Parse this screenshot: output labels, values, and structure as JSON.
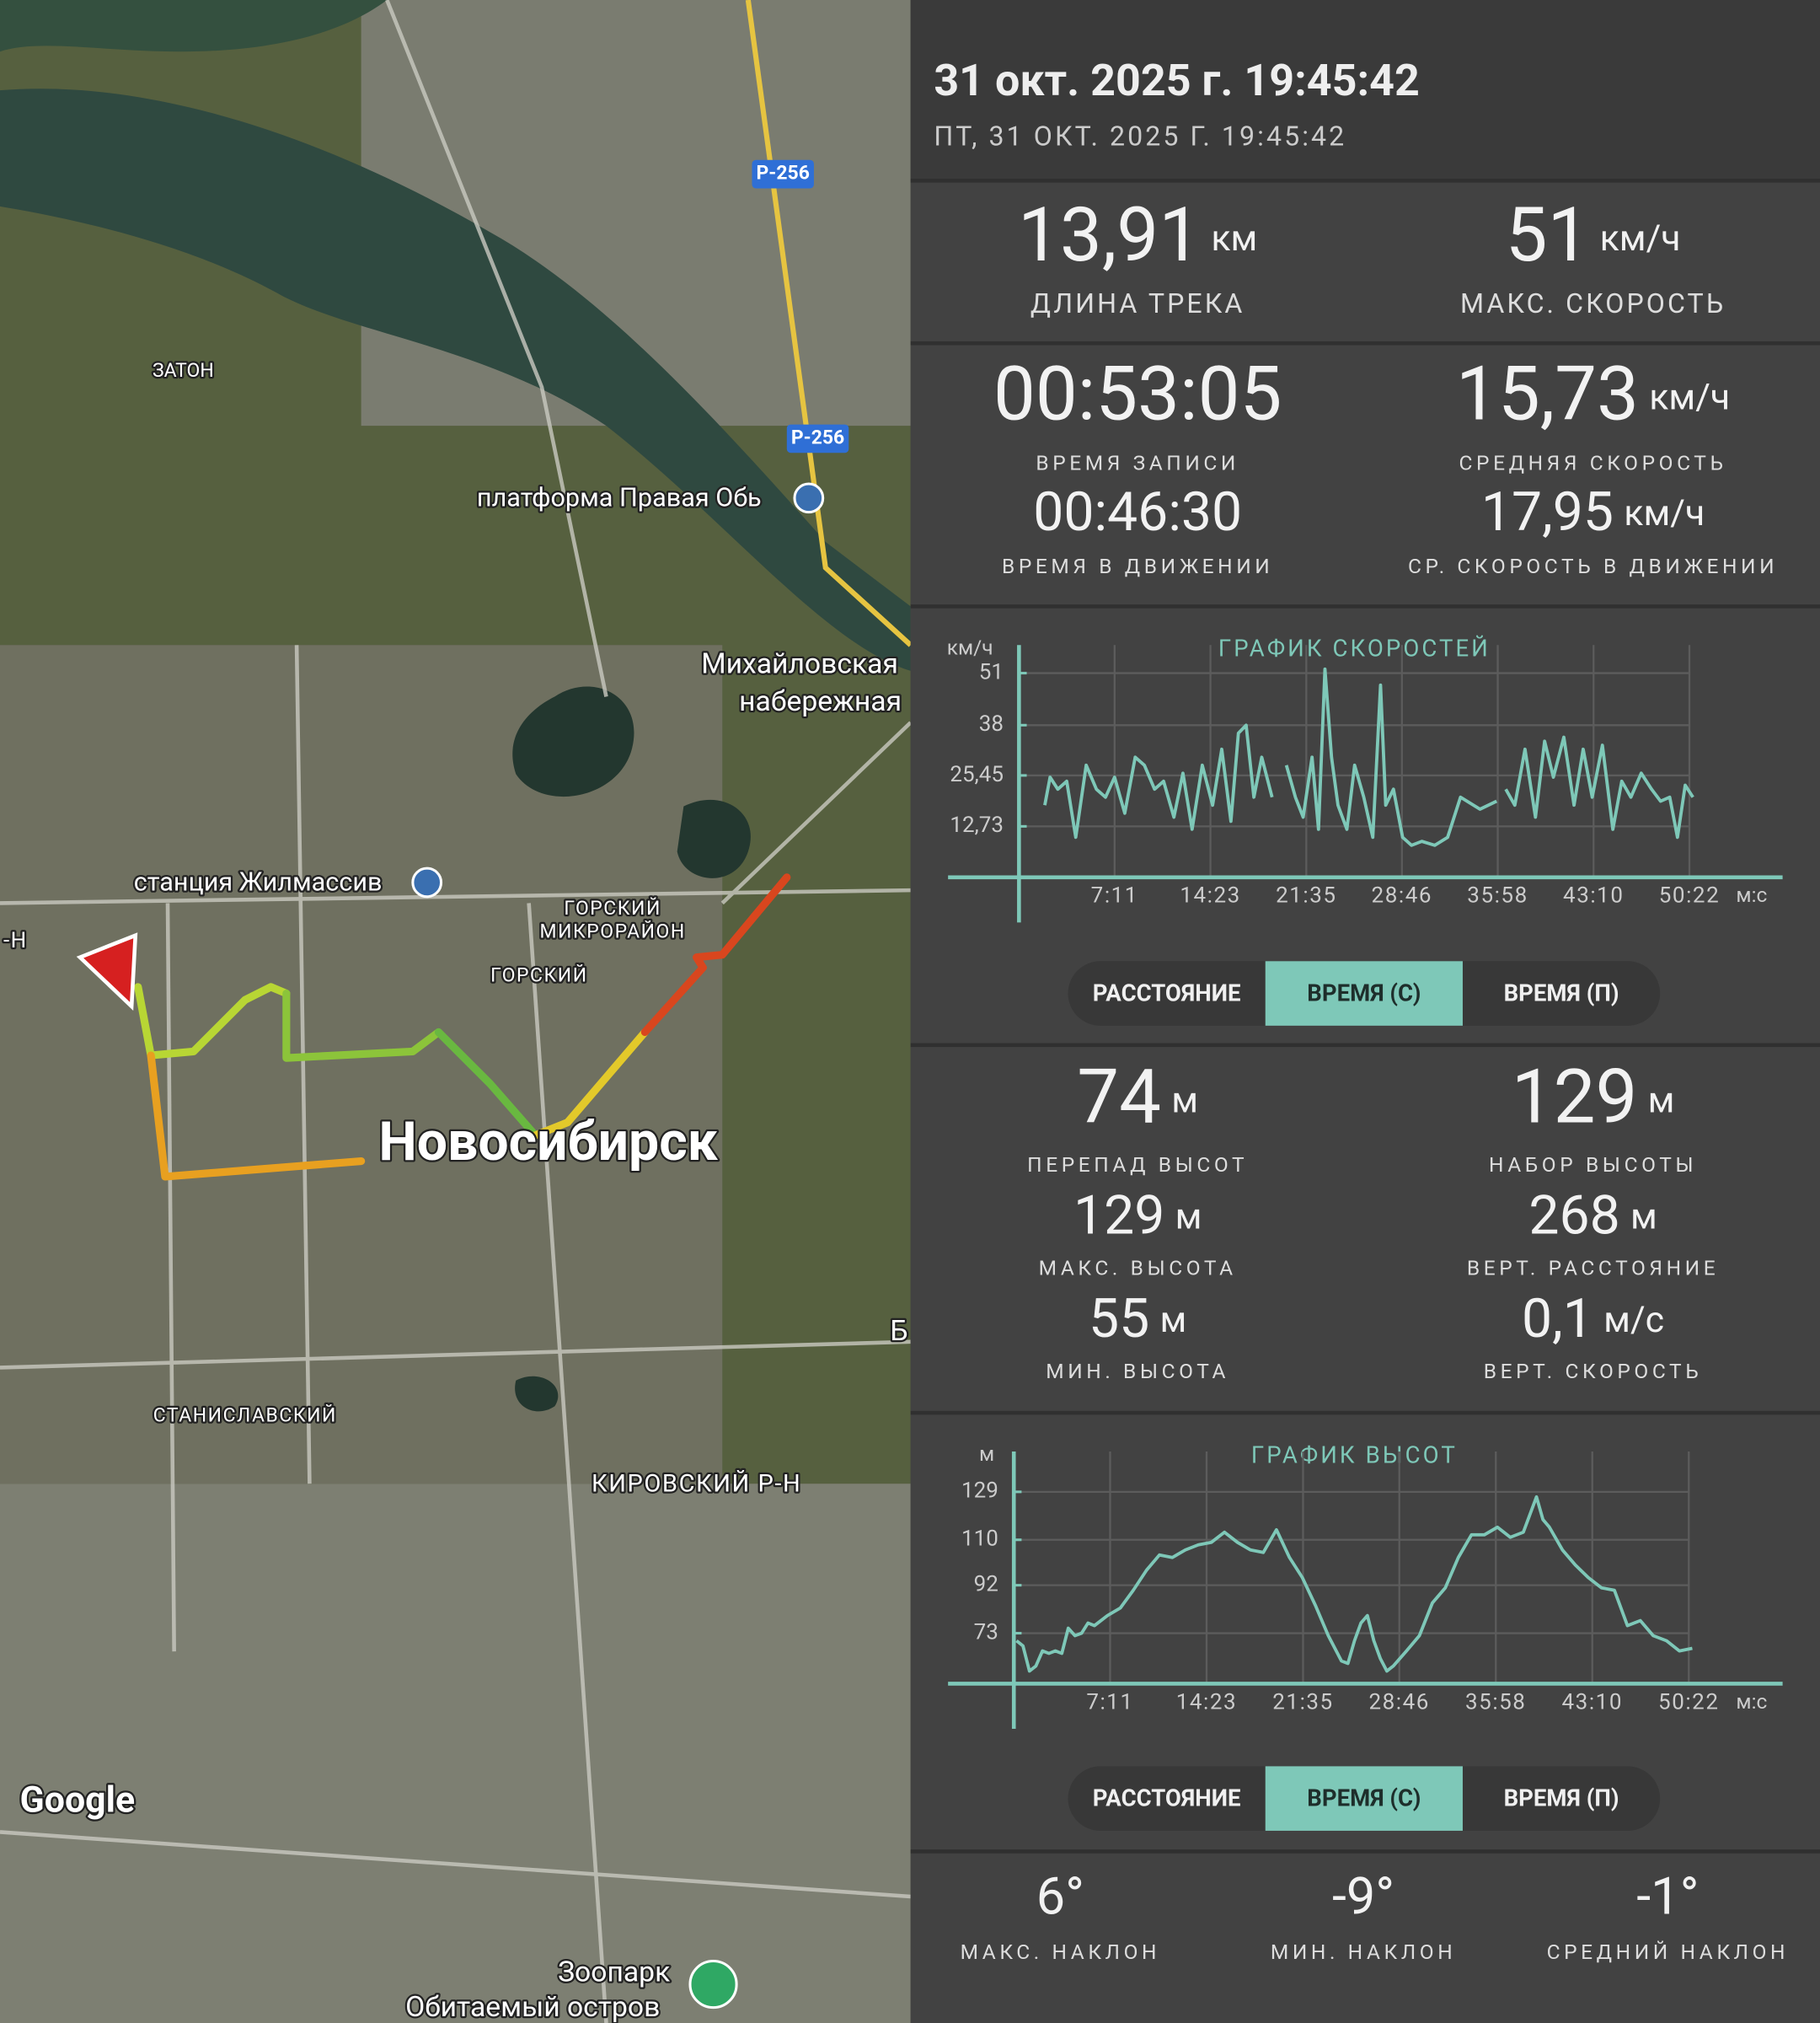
{
  "map": {
    "labels": [
      "ЗАТОН",
      "Р-256",
      "Р-256",
      "платформа Правая Обь",
      "Михайловская",
      "набережная",
      "станция Жилмассив",
      "ГОРСКИЙ",
      "МИКРОРАЙОН",
      "ГОРСКИЙ",
      "-Н",
      "Новосибирск",
      "Б",
      "СТАНИСЛАВСКИЙ",
      "КИРОВСКИЙ Р-Н",
      "Google",
      "Зоопарк",
      "Обитаемый остров"
    ]
  },
  "header": {
    "title": "31 окт. 2025 г. 19:45:42",
    "subtitle": "ПТ, 31 ОКТ. 2025 Г. 19:45:42"
  },
  "stats": [
    {
      "value": "13,91",
      "unit": "км",
      "label": "ДЛИНА ТРЕКА"
    },
    {
      "value": "51",
      "unit": "км/ч",
      "label": "МАКС. СКОРОСТЬ"
    },
    {
      "value": "00:53:05",
      "label": "ВРЕМЯ ЗАПИСИ"
    },
    {
      "value": "15,73",
      "unit": "км/ч",
      "label": "СРЕДНЯЯ СКОРОСТЬ"
    },
    {
      "value": "00:46:30",
      "label": "ВРЕМЯ В ДВИЖЕНИИ"
    },
    {
      "value": "17,95",
      "unit": "км/ч",
      "label": "СР. СКОРОСТЬ В ДВИЖЕНИИ"
    },
    {
      "value": "74",
      "unit": "м",
      "label": "ПЕРЕПАД ВЫСОТ"
    },
    {
      "value": "129",
      "unit": "м",
      "label": "НАБОР ВЫСОТЫ"
    },
    {
      "value": "129",
      "unit": "м",
      "label": "МАКС. ВЫСОТА"
    },
    {
      "value": "268",
      "unit": "м",
      "label": "ВЕРТ. РАССТОЯНИЕ"
    },
    {
      "value": "55",
      "unit": "м",
      "label": "МИН. ВЫСОТА"
    },
    {
      "value": "0,1",
      "unit": "м/с",
      "label": "ВЕРТ. СКОРОСТЬ"
    },
    {
      "value": "6°",
      "label": "МАКС. НАКЛОН"
    },
    {
      "value": "-9°",
      "label": "МИН. НАКЛОН"
    },
    {
      "value": "-1°",
      "label": "СРЕДНИЙ НАКЛОН"
    }
  ],
  "toggles": [
    {
      "options": [
        "РАССТОЯНИЕ",
        "ВРЕМЯ (С)",
        "ВРЕМЯ (П)"
      ],
      "selected": 1
    },
    {
      "options": [
        "РАССТОЯНИЕ",
        "ВРЕМЯ (С)",
        "ВРЕМЯ (П)"
      ],
      "selected": 1
    }
  ],
  "chart_data": [
    {
      "type": "line",
      "title": "ГРАФИК СКОРОСТЕЙ",
      "y_label": "км/ч",
      "x_label": "м:с",
      "color": "#7ec8b8",
      "grid": true,
      "xlim": [
        0,
        3442
      ],
      "ylim": [
        0,
        58
      ],
      "xticks": [
        {
          "value": 431,
          "label": "7:11"
        },
        {
          "value": 863,
          "label": "14:23"
        },
        {
          "value": 1295,
          "label": "21:35"
        },
        {
          "value": 1726,
          "label": "28:46"
        },
        {
          "value": 2158,
          "label": "35:58"
        },
        {
          "value": 2590,
          "label": "43:10"
        },
        {
          "value": 3022,
          "label": "50:22"
        }
      ],
      "yticks": [
        {
          "value": 12.73,
          "label": "12,73"
        },
        {
          "value": 25.45,
          "label": "25,45"
        },
        38,
        51
      ],
      "x": [
        116,
        140,
        175,
        215,
        256,
        303,
        349,
        390,
        431,
        477,
        524,
        565,
        611,
        652,
        698,
        739,
        780,
        826,
        873,
        914,
        955,
        989,
        1024,
        1059,
        1094,
        1141,
        1173,
        1205,
        1246,
        1281,
        1321,
        1350,
        1379,
        1409,
        1438,
        1478,
        1513,
        1554,
        1595,
        1630,
        1653,
        1688,
        1729,
        1769,
        1816,
        1874,
        1932,
        1990,
        2078,
        2153,
        2175,
        2194,
        2235,
        2281,
        2328,
        2369,
        2409,
        2456,
        2502,
        2543,
        2584,
        2630,
        2677,
        2717,
        2758,
        2805,
        2851,
        2892,
        2933,
        2968,
        3003,
        3038
      ],
      "values": [
        18,
        25,
        22,
        24,
        10,
        28,
        22,
        20,
        25,
        16,
        30,
        28,
        22,
        24,
        15,
        26,
        12,
        28,
        18,
        32,
        14,
        36,
        38,
        20,
        30,
        20,
        null,
        28,
        20,
        15,
        30,
        12,
        52,
        30,
        18,
        12,
        28,
        20,
        10,
        48,
        18,
        22,
        10,
        8,
        9,
        8,
        10,
        20,
        17,
        19,
        null,
        22,
        18,
        32,
        15,
        34,
        25,
        35,
        18,
        32,
        20,
        33,
        12,
        24,
        20,
        26,
        22,
        19,
        20,
        10,
        23,
        20
      ]
    },
    {
      "type": "line",
      "title": "ГРАФИК ВЫСОТ",
      "y_label": "м",
      "x_label": "м:с",
      "color": "#7ec8b8",
      "grid": true,
      "xlim": [
        0,
        3442
      ],
      "ylim": [
        53,
        145
      ],
      "xticks": [
        {
          "value": 431,
          "label": "7:11"
        },
        {
          "value": 863,
          "label": "14:23"
        },
        {
          "value": 1295,
          "label": "21:35"
        },
        {
          "value": 1726,
          "label": "28:46"
        },
        {
          "value": 2158,
          "label": "35:58"
        },
        {
          "value": 2590,
          "label": "43:10"
        },
        {
          "value": 3022,
          "label": "50:22"
        }
      ],
      "yticks": [
        73,
        92,
        110,
        129
      ],
      "x": [
        12,
        41,
        70,
        99,
        128,
        157,
        186,
        215,
        244,
        274,
        303,
        332,
        361,
        419,
        477,
        535,
        594,
        652,
        710,
        768,
        826,
        885,
        943,
        1001,
        1059,
        1117,
        1176,
        1234,
        1292,
        1350,
        1408,
        1467,
        1496,
        1525,
        1554,
        1583,
        1612,
        1641,
        1670,
        1699,
        1758,
        1816,
        1874,
        1932,
        1990,
        2049,
        2107,
        2165,
        2223,
        2281,
        2340,
        2369,
        2398,
        2456,
        2514,
        2572,
        2631,
        2689,
        2747,
        2805,
        2863,
        2922,
        2980,
        3038
      ],
      "values": [
        70,
        68,
        58,
        60,
        66,
        65,
        66,
        65,
        75,
        72,
        73,
        77,
        76,
        80,
        83,
        90,
        98,
        104,
        103,
        106,
        108,
        109,
        113,
        109,
        106,
        105,
        114,
        103,
        95,
        84,
        72,
        62,
        61,
        70,
        77,
        80,
        70,
        63,
        58,
        60,
        66,
        72,
        85,
        91,
        103,
        112,
        112,
        115,
        111,
        113,
        127,
        118,
        115,
        106,
        100,
        95,
        91,
        90,
        76,
        78,
        72,
        70,
        66,
        67
      ]
    }
  ]
}
